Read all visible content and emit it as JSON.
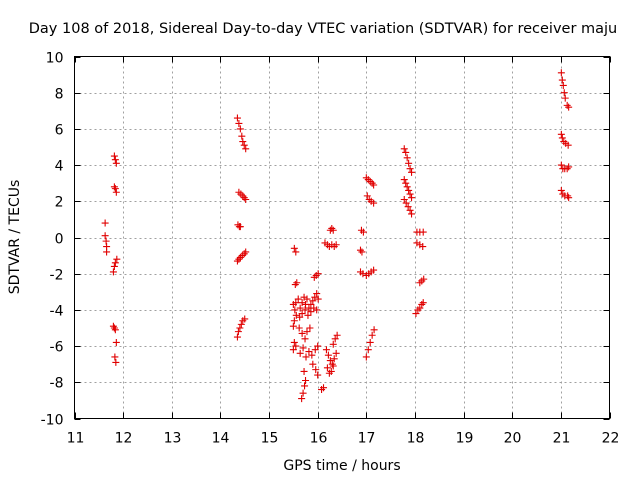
{
  "chart_data": {
    "type": "scatter",
    "title": "Day 108 of 2018, Sidereal Day-to-day VTEC variation (SDTVAR) for receiver maju",
    "xlabel": "GPS time / hours",
    "ylabel": "SDTVAR / TECUs",
    "xlim": [
      11,
      22
    ],
    "ylim": [
      -10,
      10
    ],
    "xticks": [
      "11",
      "12",
      "13",
      "14",
      "15",
      "16",
      "17",
      "18",
      "19",
      "20",
      "21",
      "22"
    ],
    "yticks": [
      "-10",
      "-8",
      "-6",
      "-4",
      "-2",
      "0",
      "2",
      "4",
      "6",
      "8",
      "10"
    ],
    "grid": true,
    "marker": "plus",
    "color": "#e00000",
    "series": [
      {
        "name": "SDTVAR",
        "points": [
          [
            11.63,
            0.8
          ],
          [
            11.63,
            0.1
          ],
          [
            11.65,
            -0.2
          ],
          [
            11.66,
            -0.5
          ],
          [
            11.66,
            -0.8
          ],
          [
            11.82,
            4.5
          ],
          [
            11.84,
            4.3
          ],
          [
            11.86,
            4.1
          ],
          [
            11.82,
            2.8
          ],
          [
            11.84,
            2.7
          ],
          [
            11.86,
            2.5
          ],
          [
            11.8,
            -1.9
          ],
          [
            11.82,
            -1.6
          ],
          [
            11.84,
            -1.4
          ],
          [
            11.87,
            -1.2
          ],
          [
            11.8,
            -4.9
          ],
          [
            11.82,
            -5.0
          ],
          [
            11.84,
            -5.1
          ],
          [
            11.86,
            -5.8
          ],
          [
            11.83,
            -6.6
          ],
          [
            11.85,
            -6.9
          ],
          [
            14.35,
            6.6
          ],
          [
            14.38,
            6.3
          ],
          [
            14.41,
            6.0
          ],
          [
            14.44,
            5.6
          ],
          [
            14.46,
            5.3
          ],
          [
            14.49,
            5.1
          ],
          [
            14.52,
            4.9
          ],
          [
            14.38,
            2.5
          ],
          [
            14.42,
            2.4
          ],
          [
            14.46,
            2.3
          ],
          [
            14.49,
            2.2
          ],
          [
            14.52,
            2.1
          ],
          [
            14.36,
            0.7
          ],
          [
            14.39,
            0.6
          ],
          [
            14.41,
            0.6
          ],
          [
            14.35,
            -1.3
          ],
          [
            14.38,
            -1.2
          ],
          [
            14.41,
            -1.1
          ],
          [
            14.45,
            -1.0
          ],
          [
            14.49,
            -0.9
          ],
          [
            14.52,
            -0.8
          ],
          [
            14.35,
            -5.5
          ],
          [
            14.37,
            -5.2
          ],
          [
            14.4,
            -5.0
          ],
          [
            14.43,
            -4.8
          ],
          [
            14.46,
            -4.6
          ],
          [
            14.5,
            -4.5
          ],
          [
            15.52,
            -0.6
          ],
          [
            15.55,
            -0.8
          ],
          [
            15.54,
            -2.6
          ],
          [
            15.57,
            -2.5
          ],
          [
            15.5,
            -3.7
          ],
          [
            15.53,
            -4.0
          ],
          [
            15.56,
            -4.3
          ],
          [
            15.52,
            -4.6
          ],
          [
            15.5,
            -4.9
          ],
          [
            15.55,
            -3.6
          ],
          [
            15.52,
            -5.8
          ],
          [
            15.5,
            -6.2
          ],
          [
            15.55,
            -6.0
          ],
          [
            15.6,
            -3.4
          ],
          [
            15.64,
            -3.9
          ],
          [
            15.68,
            -3.6
          ],
          [
            15.72,
            -3.3
          ],
          [
            15.75,
            -3.7
          ],
          [
            15.78,
            -3.4
          ],
          [
            15.82,
            -3.9
          ],
          [
            15.86,
            -3.7
          ],
          [
            15.9,
            -3.5
          ],
          [
            15.94,
            -3.3
          ],
          [
            15.98,
            -3.1
          ],
          [
            16.01,
            -3.4
          ],
          [
            15.63,
            -4.4
          ],
          [
            15.68,
            -4.2
          ],
          [
            15.74,
            -4.0
          ],
          [
            15.8,
            -4.3
          ],
          [
            15.86,
            -4.1
          ],
          [
            15.92,
            -3.9
          ],
          [
            15.98,
            -4.0
          ],
          [
            15.62,
            -5.0
          ],
          [
            15.68,
            -5.3
          ],
          [
            15.74,
            -5.6
          ],
          [
            15.78,
            -5.2
          ],
          [
            15.84,
            -5.0
          ],
          [
            15.64,
            -6.4
          ],
          [
            15.7,
            -6.1
          ],
          [
            15.76,
            -6.6
          ],
          [
            15.82,
            -6.3
          ],
          [
            15.88,
            -6.5
          ],
          [
            15.95,
            -6.2
          ],
          [
            16.0,
            -6.0
          ],
          [
            15.72,
            -7.4
          ],
          [
            15.75,
            -7.9
          ],
          [
            15.73,
            -8.2
          ],
          [
            15.7,
            -8.6
          ],
          [
            15.67,
            -8.9
          ],
          [
            15.9,
            -7.0
          ],
          [
            15.96,
            -7.3
          ],
          [
            16.0,
            -7.6
          ],
          [
            15.93,
            -2.2
          ],
          [
            15.97,
            -2.1
          ],
          [
            16.01,
            -2.0
          ],
          [
            16.08,
            -8.4
          ],
          [
            16.12,
            -8.3
          ],
          [
            16.15,
            -0.3
          ],
          [
            16.2,
            -0.4
          ],
          [
            16.24,
            -0.5
          ],
          [
            16.29,
            -0.4
          ],
          [
            16.34,
            -0.5
          ],
          [
            16.38,
            -0.4
          ],
          [
            16.26,
            0.4
          ],
          [
            16.29,
            0.5
          ],
          [
            16.32,
            0.4
          ],
          [
            16.18,
            -6.2
          ],
          [
            16.22,
            -6.5
          ],
          [
            16.26,
            -6.8
          ],
          [
            16.3,
            -7.0
          ],
          [
            16.34,
            -6.7
          ],
          [
            16.38,
            -6.4
          ],
          [
            16.2,
            -7.2
          ],
          [
            16.24,
            -7.5
          ],
          [
            16.28,
            -7.4
          ],
          [
            16.32,
            -7.1
          ],
          [
            16.32,
            -5.9
          ],
          [
            16.36,
            -5.6
          ],
          [
            16.4,
            -5.4
          ],
          [
            16.9,
            0.4
          ],
          [
            16.94,
            0.3
          ],
          [
            16.88,
            -0.7
          ],
          [
            16.91,
            -0.8
          ],
          [
            16.88,
            -1.9
          ],
          [
            16.93,
            -2.0
          ],
          [
            17.0,
            3.3
          ],
          [
            17.04,
            3.2
          ],
          [
            17.08,
            3.1
          ],
          [
            17.12,
            3.0
          ],
          [
            17.15,
            2.9
          ],
          [
            17.02,
            2.3
          ],
          [
            17.06,
            2.1
          ],
          [
            17.1,
            2.0
          ],
          [
            17.15,
            1.9
          ],
          [
            17.0,
            -2.1
          ],
          [
            17.05,
            -2.0
          ],
          [
            17.1,
            -1.9
          ],
          [
            17.15,
            -1.8
          ],
          [
            17.0,
            -6.6
          ],
          [
            17.04,
            -6.2
          ],
          [
            17.08,
            -5.8
          ],
          [
            17.12,
            -5.4
          ],
          [
            17.16,
            -5.1
          ],
          [
            17.78,
            4.9
          ],
          [
            17.81,
            4.7
          ],
          [
            17.84,
            4.4
          ],
          [
            17.87,
            4.1
          ],
          [
            17.9,
            3.8
          ],
          [
            17.93,
            3.6
          ],
          [
            17.78,
            3.2
          ],
          [
            17.81,
            3.0
          ],
          [
            17.84,
            2.8
          ],
          [
            17.87,
            2.6
          ],
          [
            17.9,
            2.4
          ],
          [
            17.93,
            2.2
          ],
          [
            17.78,
            2.1
          ],
          [
            17.82,
            1.9
          ],
          [
            17.86,
            1.7
          ],
          [
            17.9,
            1.5
          ],
          [
            17.93,
            1.3
          ],
          [
            18.04,
            0.3
          ],
          [
            18.1,
            0.3
          ],
          [
            18.17,
            0.3
          ],
          [
            18.04,
            -0.3
          ],
          [
            18.1,
            -0.4
          ],
          [
            18.16,
            -0.5
          ],
          [
            18.1,
            -2.5
          ],
          [
            18.14,
            -2.4
          ],
          [
            18.18,
            -2.3
          ],
          [
            18.02,
            -4.2
          ],
          [
            18.06,
            -4.0
          ],
          [
            18.1,
            -3.9
          ],
          [
            18.14,
            -3.7
          ],
          [
            18.17,
            -3.6
          ],
          [
            21.01,
            9.1
          ],
          [
            21.03,
            8.7
          ],
          [
            21.05,
            8.4
          ],
          [
            21.07,
            8.0
          ],
          [
            21.09,
            7.7
          ],
          [
            21.13,
            7.3
          ],
          [
            21.16,
            7.2
          ],
          [
            21.01,
            5.7
          ],
          [
            21.03,
            5.5
          ],
          [
            21.06,
            5.3
          ],
          [
            21.1,
            5.2
          ],
          [
            21.15,
            5.1
          ],
          [
            21.01,
            4.0
          ],
          [
            21.04,
            3.8
          ],
          [
            21.08,
            3.8
          ],
          [
            21.13,
            3.8
          ],
          [
            21.16,
            3.9
          ],
          [
            21.01,
            2.6
          ],
          [
            21.04,
            2.4
          ],
          [
            21.08,
            2.3
          ],
          [
            21.14,
            2.3
          ],
          [
            21.16,
            2.2
          ]
        ]
      }
    ]
  }
}
